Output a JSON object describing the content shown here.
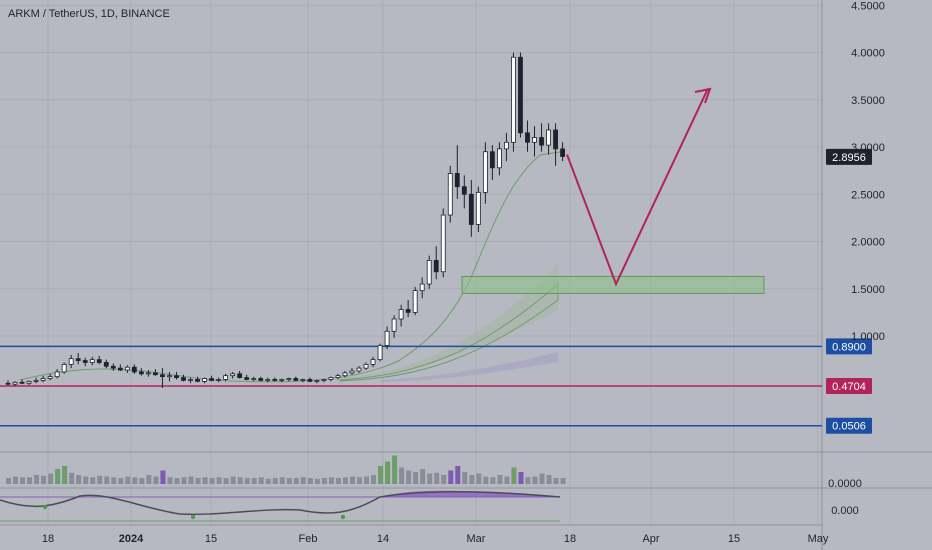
{
  "header": {
    "title": "ARKM / TetherUS, 1D, BINANCE"
  },
  "chart_data": {
    "type": "candlestick",
    "price_axis": {
      "ticks": [
        "4.5000",
        "4.0000",
        "3.5000",
        "3.0000",
        "2.5000",
        "2.0000",
        "1.5000",
        "1.0000"
      ],
      "values": [
        4.5,
        4.0,
        3.5,
        3.0,
        2.5,
        2.0,
        1.5,
        1.0
      ],
      "ylim": [
        0.0,
        4.7
      ]
    },
    "time_axis": {
      "labels": [
        "18",
        "2024",
        "15",
        "Feb",
        "14",
        "Mar",
        "18",
        "Apr",
        "15",
        "May"
      ]
    },
    "last_price": {
      "label": "2.8956",
      "value": 2.8956,
      "color": "#1e222d"
    },
    "levels": [
      {
        "label": "0.8900",
        "value": 0.89,
        "color": "#1e4ea1"
      },
      {
        "label": "0.4704",
        "value": 0.4704,
        "color": "#b0245a"
      },
      {
        "label": "0.0506",
        "value": 0.0506,
        "color": "#1e4ea1"
      }
    ],
    "zone": {
      "low": 1.45,
      "high": 1.63,
      "color": "#8fbf8a"
    },
    "projection": {
      "points": [
        2.92,
        1.55,
        3.62
      ],
      "color": "#b0245a"
    },
    "candles": [
      [
        0.5,
        0.53,
        0.48,
        0.49
      ],
      [
        0.49,
        0.52,
        0.47,
        0.51
      ],
      [
        0.51,
        0.54,
        0.49,
        0.5
      ],
      [
        0.5,
        0.53,
        0.48,
        0.52
      ],
      [
        0.52,
        0.56,
        0.5,
        0.53
      ],
      [
        0.53,
        0.58,
        0.51,
        0.55
      ],
      [
        0.55,
        0.6,
        0.53,
        0.57
      ],
      [
        0.57,
        0.65,
        0.55,
        0.62
      ],
      [
        0.62,
        0.72,
        0.6,
        0.7
      ],
      [
        0.7,
        0.8,
        0.66,
        0.76
      ],
      [
        0.76,
        0.82,
        0.7,
        0.74
      ],
      [
        0.74,
        0.77,
        0.68,
        0.72
      ],
      [
        0.72,
        0.78,
        0.69,
        0.75
      ],
      [
        0.75,
        0.79,
        0.7,
        0.72
      ],
      [
        0.72,
        0.75,
        0.66,
        0.68
      ],
      [
        0.68,
        0.71,
        0.63,
        0.66
      ],
      [
        0.66,
        0.7,
        0.63,
        0.64
      ],
      [
        0.64,
        0.69,
        0.61,
        0.67
      ],
      [
        0.67,
        0.7,
        0.6,
        0.62
      ],
      [
        0.62,
        0.66,
        0.58,
        0.6
      ],
      [
        0.6,
        0.64,
        0.57,
        0.61
      ],
      [
        0.61,
        0.65,
        0.58,
        0.59
      ],
      [
        0.59,
        0.66,
        0.45,
        0.57
      ],
      [
        0.57,
        0.62,
        0.52,
        0.58
      ],
      [
        0.58,
        0.62,
        0.54,
        0.56
      ],
      [
        0.56,
        0.59,
        0.52,
        0.53
      ],
      [
        0.53,
        0.56,
        0.5,
        0.54
      ],
      [
        0.54,
        0.57,
        0.51,
        0.52
      ],
      [
        0.52,
        0.56,
        0.5,
        0.55
      ],
      [
        0.55,
        0.58,
        0.52,
        0.53
      ],
      [
        0.53,
        0.56,
        0.51,
        0.54
      ],
      [
        0.54,
        0.6,
        0.52,
        0.58
      ],
      [
        0.58,
        0.62,
        0.55,
        0.6
      ],
      [
        0.6,
        0.63,
        0.55,
        0.56
      ],
      [
        0.56,
        0.59,
        0.53,
        0.54
      ],
      [
        0.54,
        0.57,
        0.52,
        0.55
      ],
      [
        0.55,
        0.57,
        0.52,
        0.53
      ],
      [
        0.53,
        0.56,
        0.51,
        0.54
      ],
      [
        0.54,
        0.56,
        0.52,
        0.53
      ],
      [
        0.53,
        0.55,
        0.51,
        0.54
      ],
      [
        0.54,
        0.56,
        0.52,
        0.55
      ],
      [
        0.55,
        0.57,
        0.52,
        0.53
      ],
      [
        0.53,
        0.55,
        0.51,
        0.54
      ],
      [
        0.54,
        0.56,
        0.51,
        0.52
      ],
      [
        0.52,
        0.54,
        0.5,
        0.53
      ],
      [
        0.53,
        0.55,
        0.51,
        0.54
      ],
      [
        0.54,
        0.57,
        0.52,
        0.56
      ],
      [
        0.56,
        0.6,
        0.54,
        0.58
      ],
      [
        0.58,
        0.63,
        0.56,
        0.61
      ],
      [
        0.61,
        0.66,
        0.59,
        0.63
      ],
      [
        0.63,
        0.68,
        0.61,
        0.66
      ],
      [
        0.66,
        0.72,
        0.64,
        0.7
      ],
      [
        0.7,
        0.78,
        0.67,
        0.75
      ],
      [
        0.75,
        0.92,
        0.73,
        0.9
      ],
      [
        0.9,
        1.1,
        0.86,
        1.05
      ],
      [
        1.05,
        1.22,
        0.98,
        1.18
      ],
      [
        1.18,
        1.33,
        1.1,
        1.28
      ],
      [
        1.28,
        1.38,
        1.2,
        1.25
      ],
      [
        1.25,
        1.52,
        1.22,
        1.48
      ],
      [
        1.48,
        1.62,
        1.4,
        1.55
      ],
      [
        1.55,
        1.85,
        1.5,
        1.8
      ],
      [
        1.8,
        1.95,
        1.6,
        1.68
      ],
      [
        1.68,
        2.35,
        1.62,
        2.28
      ],
      [
        2.28,
        2.8,
        2.2,
        2.72
      ],
      [
        2.72,
        3.02,
        2.45,
        2.58
      ],
      [
        2.58,
        2.7,
        2.35,
        2.5
      ],
      [
        2.5,
        2.65,
        2.05,
        2.18
      ],
      [
        2.18,
        2.58,
        2.1,
        2.52
      ],
      [
        2.52,
        3.05,
        2.4,
        2.95
      ],
      [
        2.95,
        3.02,
        2.65,
        2.78
      ],
      [
        2.78,
        3.05,
        2.7,
        2.98
      ],
      [
        2.98,
        3.15,
        2.85,
        3.05
      ],
      [
        3.05,
        4.0,
        2.95,
        3.95
      ],
      [
        3.95,
        4.0,
        3.1,
        3.15
      ],
      [
        3.15,
        3.28,
        2.95,
        3.05
      ],
      [
        3.05,
        3.22,
        2.9,
        3.1
      ],
      [
        3.1,
        3.25,
        2.95,
        3.02
      ],
      [
        3.02,
        3.25,
        2.92,
        3.18
      ],
      [
        3.18,
        3.25,
        2.8,
        2.98
      ],
      [
        2.98,
        3.05,
        2.85,
        2.9
      ]
    ],
    "volume": {
      "values": [
        8,
        10,
        9,
        9,
        12,
        11,
        14,
        20,
        24,
        15,
        12,
        10,
        9,
        11,
        10,
        9,
        8,
        10,
        9,
        8,
        12,
        10,
        18,
        9,
        8,
        9,
        10,
        8,
        9,
        8,
        9,
        8,
        10,
        9,
        8,
        8,
        9,
        7,
        8,
        9,
        8,
        8,
        9,
        8,
        7,
        8,
        9,
        8,
        9,
        10,
        9,
        10,
        12,
        24,
        30,
        38,
        22,
        18,
        16,
        20,
        14,
        15,
        12,
        18,
        24,
        16,
        12,
        14,
        10,
        9,
        12,
        10,
        22,
        16,
        9,
        10,
        14,
        12,
        8,
        8
      ],
      "colors": [
        "#8a8d96",
        "#8a8d96",
        "#8a8d96",
        "#8a8d96",
        "#8a8d96",
        "#8a8d96",
        "#8a8d96",
        "#6d9e6a",
        "#6d9e6a",
        "#8a8d96",
        "#8a8d96",
        "#8a8d96",
        "#8a8d96",
        "#8a8d96",
        "#8a8d96",
        "#8a8d96",
        "#8a8d96",
        "#8a8d96",
        "#8a8d96",
        "#8a8d96",
        "#8a8d96",
        "#8a8d96",
        "#7c5bb0",
        "#8a8d96",
        "#8a8d96",
        "#8a8d96",
        "#8a8d96",
        "#8a8d96",
        "#8a8d96",
        "#8a8d96",
        "#8a8d96",
        "#8a8d96",
        "#8a8d96",
        "#8a8d96",
        "#8a8d96",
        "#8a8d96",
        "#8a8d96",
        "#8a8d96",
        "#8a8d96",
        "#8a8d96",
        "#8a8d96",
        "#8a8d96",
        "#8a8d96",
        "#8a8d96",
        "#8a8d96",
        "#8a8d96",
        "#8a8d96",
        "#8a8d96",
        "#8a8d96",
        "#8a8d96",
        "#8a8d96",
        "#8a8d96",
        "#8a8d96",
        "#6d9e6a",
        "#6d9e6a",
        "#6d9e6a",
        "#8a8d96",
        "#8a8d96",
        "#8a8d96",
        "#8a8d96",
        "#8a8d96",
        "#8a8d96",
        "#8a8d96",
        "#7c5bb0",
        "#7c5bb0",
        "#8a8d96",
        "#8a8d96",
        "#8a8d96",
        "#8a8d96",
        "#8a8d96",
        "#8a8d96",
        "#8a8d96",
        "#6d9e6a",
        "#7c5bb0",
        "#8a8d96",
        "#8a8d96",
        "#8a8d96",
        "#8a8d96",
        "#8a8d96",
        "#8a8d96"
      ]
    },
    "oscillator": {
      "ticks": [
        "0.0000",
        "0.000"
      ],
      "accent": "#8a5bbf",
      "line_color": "#4a4d56"
    }
  }
}
